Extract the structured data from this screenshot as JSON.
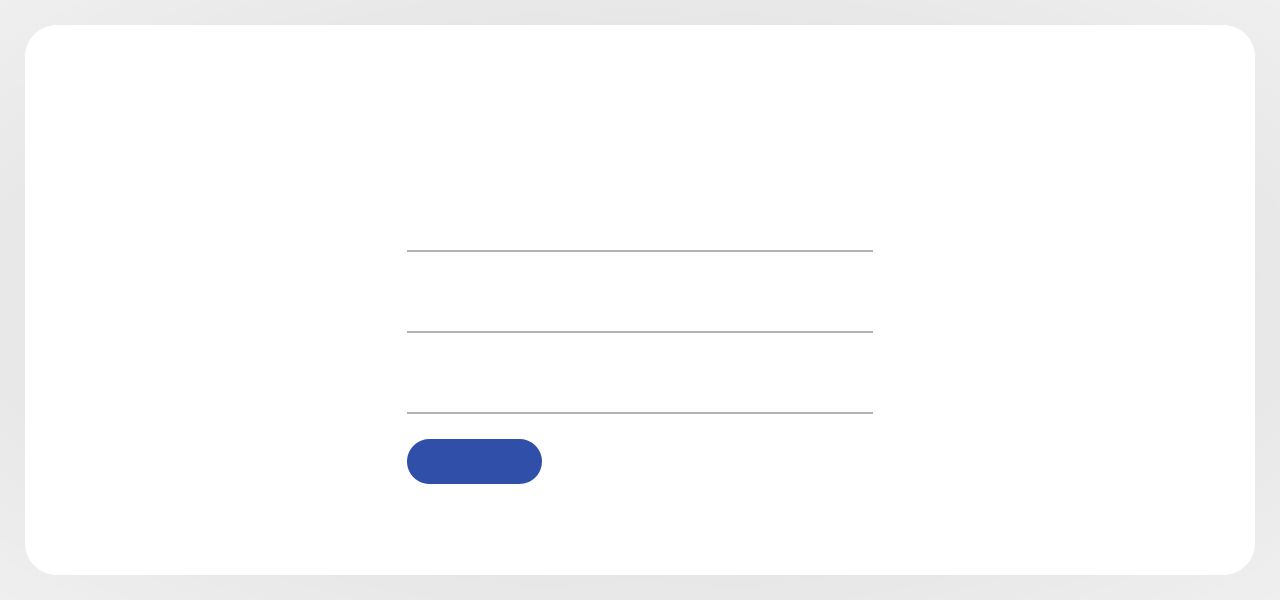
{
  "form": {
    "fields": [
      {
        "value": "",
        "placeholder": ""
      },
      {
        "value": "",
        "placeholder": ""
      },
      {
        "value": "",
        "placeholder": ""
      }
    ],
    "submit_label": ""
  },
  "colors": {
    "page_background": "#e4e4e4",
    "card_background": "#ffffff",
    "field_underline": "#b3b3b3",
    "button_background": "#2f4fa8"
  }
}
